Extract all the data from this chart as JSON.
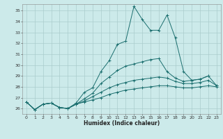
{
  "title": "",
  "xlabel": "Humidex (Indice chaleur)",
  "bg_color": "#cceaea",
  "grid_color": "#aacccc",
  "line_color": "#1a6e6e",
  "xlim": [
    -0.5,
    23.5
  ],
  "ylim": [
    25.5,
    35.6
  ],
  "yticks": [
    26,
    27,
    28,
    29,
    30,
    31,
    32,
    33,
    34,
    35
  ],
  "xticks": [
    0,
    1,
    2,
    3,
    4,
    5,
    6,
    7,
    8,
    9,
    10,
    11,
    12,
    13,
    14,
    15,
    16,
    17,
    18,
    19,
    20,
    21,
    22,
    23
  ],
  "series": [
    [
      26.6,
      25.9,
      26.4,
      26.5,
      26.1,
      26.0,
      26.5,
      27.5,
      27.9,
      29.4,
      30.4,
      31.9,
      32.2,
      35.4,
      34.2,
      33.2,
      33.2,
      34.6,
      32.5,
      29.4,
      28.6,
      28.7,
      29.0,
      null
    ],
    [
      26.6,
      25.9,
      26.4,
      26.5,
      26.1,
      26.0,
      26.4,
      26.9,
      27.4,
      28.3,
      28.9,
      29.5,
      29.9,
      30.1,
      30.3,
      30.5,
      30.6,
      29.4,
      28.8,
      28.5,
      28.6,
      28.7,
      29.0,
      28.1
    ],
    [
      26.6,
      25.9,
      26.4,
      26.5,
      26.1,
      26.0,
      26.4,
      26.7,
      27.1,
      27.5,
      27.9,
      28.2,
      28.4,
      28.6,
      28.7,
      28.8,
      28.9,
      28.8,
      28.5,
      28.3,
      28.3,
      28.4,
      28.6,
      28.1
    ],
    [
      26.6,
      25.9,
      26.4,
      26.5,
      26.1,
      26.0,
      26.4,
      26.6,
      26.8,
      27.0,
      27.3,
      27.5,
      27.7,
      27.8,
      27.9,
      28.0,
      28.1,
      28.1,
      28.0,
      27.9,
      27.9,
      28.0,
      28.1,
      28.0
    ]
  ]
}
